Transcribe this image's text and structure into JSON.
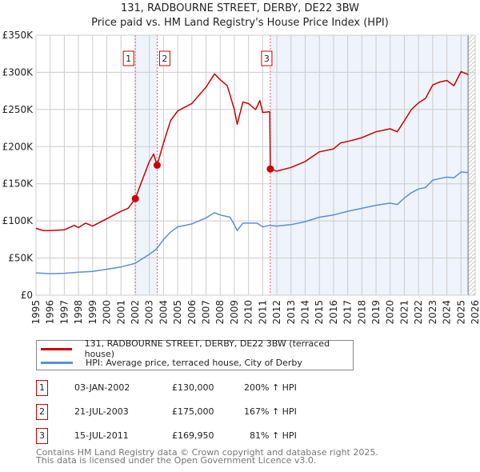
{
  "chart_data": {
    "type": "line",
    "title": "131, RADBOURNE STREET, DERBY, DE22 3BW",
    "subtitle": "Price paid vs. HM Land Registry's House Price Index (HPI)",
    "xlim": [
      1995,
      2026
    ],
    "ylim": [
      0,
      350000
    ],
    "yticks": [
      {
        "v": 0,
        "label": "£0"
      },
      {
        "v": 50000,
        "label": "£50K"
      },
      {
        "v": 100000,
        "label": "£100K"
      },
      {
        "v": 150000,
        "label": "£150K"
      },
      {
        "v": 200000,
        "label": "£200K"
      },
      {
        "v": 250000,
        "label": "£250K"
      },
      {
        "v": 300000,
        "label": "£300K"
      },
      {
        "v": 350000,
        "label": "£350K"
      }
    ],
    "xticks": [
      "1995",
      "1996",
      "1997",
      "1998",
      "1999",
      "2000",
      "2001",
      "2002",
      "2003",
      "2004",
      "2005",
      "2006",
      "2007",
      "2008",
      "2009",
      "2010",
      "2011",
      "2012",
      "2013",
      "2014",
      "2015",
      "2016",
      "2017",
      "2018",
      "2019",
      "2020",
      "2021",
      "2022",
      "2023",
      "2024",
      "2025",
      "2026"
    ],
    "grid": true,
    "colors": {
      "property": "#cc0000",
      "hpi": "#5b8fd4",
      "shade": "#eef3fc"
    },
    "shaded_periods": [
      [
        2002.01,
        2003.55
      ],
      [
        2011.54,
        2025.5
      ]
    ],
    "forecast_hatch_from": 2025.5,
    "series": [
      {
        "name": "131, RADBOURNE STREET, DERBY, DE22 3BW (terraced house)",
        "color": "#cc0000",
        "x": [
          1995,
          1995.5,
          1996,
          1997,
          1997.7,
          1998,
          1998.5,
          1999,
          2000,
          2000.5,
          2001,
          2001.5,
          2002.01,
          2002.5,
          2003,
          2003.3,
          2003.55,
          2004,
          2004.5,
          2005,
          2006,
          2007,
          2007.6,
          2008,
          2008.5,
          2009,
          2009.2,
          2009.6,
          2010,
          2010.5,
          2010.8,
          2011,
          2011.5,
          2011.54,
          2012,
          2013,
          2014,
          2015,
          2016,
          2016.5,
          2017,
          2018,
          2019,
          2020,
          2020.5,
          2021,
          2021.5,
          2022,
          2022.5,
          2023,
          2023.5,
          2024,
          2024.5,
          2025,
          2025.5
        ],
        "y": [
          90000,
          87000,
          87000,
          88000,
          94000,
          91000,
          97000,
          93000,
          103000,
          108000,
          113000,
          117000,
          130000,
          155000,
          180000,
          190000,
          175000,
          205000,
          235000,
          248000,
          258000,
          280000,
          298000,
          290000,
          282000,
          250000,
          230000,
          260000,
          258000,
          250000,
          262000,
          246000,
          247000,
          169950,
          167000,
          172000,
          180000,
          193000,
          197000,
          205000,
          207000,
          212000,
          220000,
          224000,
          220000,
          235000,
          250000,
          259000,
          265000,
          283000,
          287000,
          289000,
          282000,
          301000,
          297000
        ]
      },
      {
        "name": "HPI: Average price, terraced house, City of Derby",
        "color": "#5b8fd4",
        "x": [
          1995,
          1996,
          1997,
          1998,
          1999,
          2000,
          2001,
          2002,
          2003,
          2003.5,
          2004,
          2004.5,
          2005,
          2006,
          2007,
          2007.6,
          2008,
          2008.7,
          2009,
          2009.2,
          2009.6,
          2010,
          2010.6,
          2011,
          2011.5,
          2012,
          2013,
          2014,
          2015,
          2016,
          2017,
          2018,
          2019,
          2020,
          2020.5,
          2021,
          2021.5,
          2022,
          2022.5,
          2023,
          2023.5,
          2024,
          2024.5,
          2025,
          2025.5
        ],
        "y": [
          30000,
          29000,
          29500,
          31000,
          32000,
          35000,
          38000,
          43000,
          55000,
          62000,
          75000,
          85000,
          92000,
          96000,
          104000,
          111000,
          108000,
          105000,
          95000,
          87000,
          97000,
          97000,
          97000,
          92000,
          94000,
          93000,
          95000,
          99000,
          105000,
          108000,
          113000,
          117000,
          121000,
          124000,
          122000,
          131000,
          138000,
          143000,
          145000,
          155000,
          157000,
          159000,
          158000,
          166000,
          165000
        ]
      }
    ],
    "sales": [
      {
        "n": "1",
        "x": 2002.01,
        "y": 130000
      },
      {
        "n": "2",
        "x": 2003.55,
        "y": 175000
      },
      {
        "n": "3",
        "x": 2011.54,
        "y": 169950
      }
    ]
  },
  "legend": {
    "property": "131, RADBOURNE STREET, DERBY, DE22 3BW (terraced house)",
    "hpi": "HPI: Average price, terraced house, City of Derby"
  },
  "transactions": [
    {
      "n": "1",
      "date": "03-JAN-2002",
      "price": "£130,000",
      "hpi": "200% ↑ HPI"
    },
    {
      "n": "2",
      "date": "21-JUL-2003",
      "price": "£175,000",
      "hpi": "167% ↑ HPI"
    },
    {
      "n": "3",
      "date": "15-JUL-2011",
      "price": "£169,950",
      "hpi": "81% ↑ HPI"
    }
  ],
  "footer": {
    "line1": "Contains HM Land Registry data © Crown copyright and database right 2025.",
    "line2": "This data is licensed under the Open Government Licence v3.0."
  }
}
